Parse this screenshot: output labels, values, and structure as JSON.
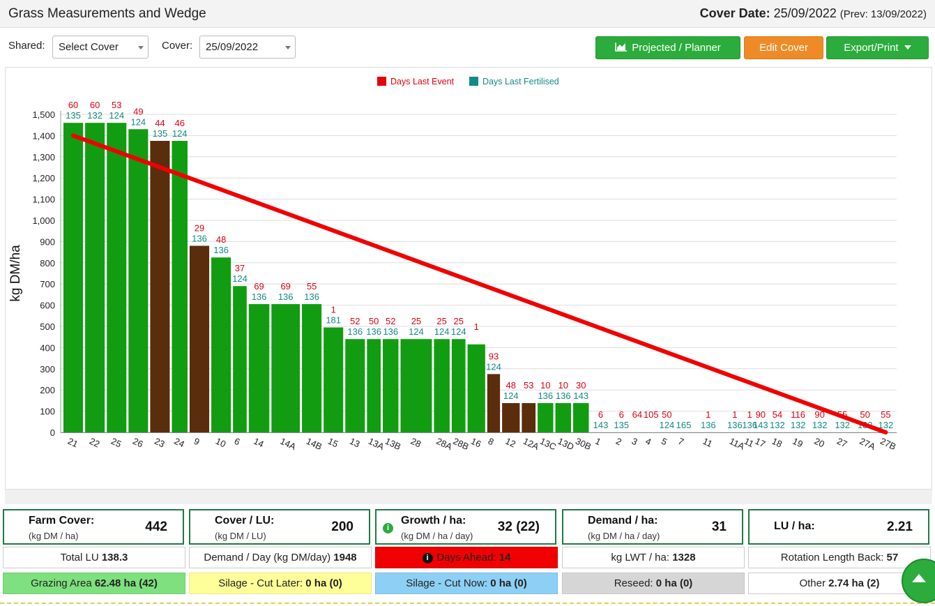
{
  "header": {
    "title": "Grass Measurements and Wedge",
    "cover_date_label": "Cover Date:",
    "cover_date": "25/09/2022",
    "prev": "(Prev: 13/09/2022)"
  },
  "toolbar": {
    "shared_label": "Shared:",
    "shared_value": "Select Cover",
    "cover_label": "Cover:",
    "cover_value": "25/09/2022",
    "projected_label": "Projected / Planner",
    "edit_label": "Edit Cover",
    "export_label": "Export/Print"
  },
  "chart_data": {
    "type": "bar",
    "ylabel": "kg DM/ha",
    "ylim": [
      0,
      1500
    ],
    "yticks": [
      0,
      100,
      200,
      300,
      400,
      500,
      600,
      700,
      800,
      900,
      1000,
      1100,
      1200,
      1300,
      1400,
      1500
    ],
    "legend": [
      {
        "name": "Days Last Event",
        "color": "#e3000f"
      },
      {
        "name": "Days Last Fertilised",
        "color": "#128a86"
      }
    ],
    "bars": [
      {
        "cat": "21",
        "value": 1460,
        "area": 1,
        "color": "#129c12",
        "event": "60",
        "fert": "135"
      },
      {
        "cat": "22",
        "value": 1460,
        "area": 1,
        "color": "#129c12",
        "event": "60",
        "fert": "132"
      },
      {
        "cat": "25",
        "value": 1460,
        "area": 1,
        "color": "#129c12",
        "event": "53",
        "fert": "124"
      },
      {
        "cat": "26",
        "value": 1430,
        "area": 1,
        "color": "#129c12",
        "event": "49",
        "fert": "124"
      },
      {
        "cat": "23",
        "value": 1375,
        "area": 1,
        "color": "#5a2d0c",
        "event": "44",
        "fert": "135"
      },
      {
        "cat": "24",
        "value": 1375,
        "area": 0.8,
        "color": "#129c12",
        "event": "46",
        "fert": "124"
      },
      {
        "cat": "9",
        "value": 880,
        "area": 1,
        "color": "#5a2d0c",
        "event": "29",
        "fert": "136"
      },
      {
        "cat": "10",
        "value": 825,
        "area": 1,
        "color": "#129c12",
        "event": "48",
        "fert": "136"
      },
      {
        "cat": "6",
        "value": 690,
        "area": 0.7,
        "color": "#129c12",
        "event": "37",
        "fert": "124"
      },
      {
        "cat": "14",
        "value": 605,
        "area": 1.05,
        "color": "#129c12",
        "event": "69",
        "fert": "136"
      },
      {
        "cat": "14A",
        "value": 605,
        "area": 1.45,
        "color": "#129c12",
        "event": "69",
        "fert": "136"
      },
      {
        "cat": "14B",
        "value": 605,
        "area": 1,
        "color": "#129c12",
        "event": "55",
        "fert": "136"
      },
      {
        "cat": "15",
        "value": 495,
        "area": 1,
        "color": "#129c12",
        "event": "1",
        "fert": "181"
      },
      {
        "cat": "13",
        "value": 440,
        "area": 1,
        "color": "#129c12",
        "event": "52",
        "fert": "136"
      },
      {
        "cat": "13A",
        "value": 440,
        "area": 0.7,
        "color": "#129c12",
        "event": "50",
        "fert": "136"
      },
      {
        "cat": "13B",
        "value": 440,
        "area": 0.8,
        "color": "#129c12",
        "event": "52",
        "fert": "136"
      },
      {
        "cat": "28",
        "value": 440,
        "area": 1.6,
        "color": "#129c12",
        "event": "25",
        "fert": "124"
      },
      {
        "cat": "28A",
        "value": 440,
        "area": 0.8,
        "color": "#129c12",
        "event": "25",
        "fert": "124"
      },
      {
        "cat": "28B",
        "value": 440,
        "area": 0.7,
        "color": "#129c12",
        "event": "25",
        "fert": "124"
      },
      {
        "cat": "16",
        "value": 415,
        "area": 0.9,
        "color": "#129c12",
        "event": "1",
        "fert": ""
      },
      {
        "cat": "8",
        "value": 275,
        "area": 0.65,
        "color": "#5a2d0c",
        "event": "93",
        "fert": "124"
      },
      {
        "cat": "12",
        "value": 138,
        "area": 0.9,
        "color": "#5a2d0c",
        "event": "48",
        "fert": "124"
      },
      {
        "cat": "12A",
        "value": 138,
        "area": 0.7,
        "color": "#5a2d0c",
        "event": "53",
        "fert": ""
      },
      {
        "cat": "13C",
        "value": 138,
        "area": 0.8,
        "color": "#129c12",
        "event": "10",
        "fert": "136"
      },
      {
        "cat": "13D",
        "value": 138,
        "area": 0.8,
        "color": "#129c12",
        "event": "10",
        "fert": "136"
      },
      {
        "cat": "30B",
        "value": 138,
        "area": 0.8,
        "color": "#129c12",
        "event": "30",
        "fert": "143"
      },
      {
        "cat": "1",
        "value": 0,
        "area": 1,
        "color": "#129c12",
        "event": "6",
        "fert": "143"
      },
      {
        "cat": "2",
        "value": 0,
        "area": 0.9,
        "color": "#129c12",
        "event": "6",
        "fert": "135"
      },
      {
        "cat": "3",
        "value": 0,
        "area": 0.5,
        "color": "#129c12",
        "event": "64",
        "fert": ""
      },
      {
        "cat": "4",
        "value": 0,
        "area": 0.7,
        "color": "#129c12",
        "event": "105",
        "fert": ""
      },
      {
        "cat": "5",
        "value": 0,
        "area": 0.7,
        "color": "#129c12",
        "event": "50",
        "fert": "124"
      },
      {
        "cat": "7",
        "value": 0,
        "area": 0.8,
        "color": "#129c12",
        "event": "",
        "fert": "165"
      },
      {
        "cat": "11",
        "value": 0,
        "area": 1.5,
        "color": "#129c12",
        "event": "1",
        "fert": "136"
      },
      {
        "cat": "11A",
        "value": 0,
        "area": 1,
        "color": "#129c12",
        "event": "1",
        "fert": "136"
      },
      {
        "cat": "11",
        "value": 0,
        "area": 0.3,
        "color": "#129c12",
        "event": "1",
        "fert": "136"
      },
      {
        "cat": "17",
        "value": 0,
        "area": 0.6,
        "color": "#129c12",
        "event": "90",
        "fert": "143"
      },
      {
        "cat": "18",
        "value": 0,
        "area": 0.9,
        "color": "#129c12",
        "event": "54",
        "fert": "132"
      },
      {
        "cat": "19",
        "value": 0,
        "area": 1,
        "color": "#129c12",
        "event": "116",
        "fert": "132"
      },
      {
        "cat": "20",
        "value": 0,
        "area": 1,
        "color": "#129c12",
        "event": "90",
        "fert": "132"
      },
      {
        "cat": "27",
        "value": 0,
        "area": 1.1,
        "color": "#129c12",
        "event": "55",
        "fert": "132"
      },
      {
        "cat": "27A",
        "value": 0,
        "area": 1,
        "color": "#129c12",
        "event": "50",
        "fert": "132"
      },
      {
        "cat": "27B",
        "value": 0,
        "area": 0.9,
        "color": "#129c12",
        "event": "55",
        "fert": "132"
      }
    ],
    "wedge": {
      "from": 1400,
      "to": 0,
      "color": "#f00000"
    }
  },
  "stats": {
    "farm_cover": {
      "title": "Farm Cover:",
      "unit": "(kg DM / ha)",
      "value": "442"
    },
    "cover_lu": {
      "title": "Cover / LU:",
      "unit": "(kg DM / LU)",
      "value": "200"
    },
    "growth": {
      "title": "Growth / ha:",
      "unit": "(kg DM / ha / day)",
      "value": "32 (22)"
    },
    "demand": {
      "title": "Demand / ha:",
      "unit": "(kg DM / ha / day)",
      "value": "31"
    },
    "lu_ha": {
      "title": "LU / ha:",
      "value": "2.21"
    }
  },
  "row2": {
    "total_lu_label": "Total LU",
    "total_lu": "138.3",
    "demand_day_label": "Demand / Day (kg DM/day)",
    "demand_day": "1948",
    "days_ahead_label": "Days Ahead:",
    "days_ahead": "14",
    "kg_lwt_label": "kg LWT / ha:",
    "kg_lwt": "1328",
    "rotation_label": "Rotation Length Back:",
    "rotation": "57"
  },
  "row3": {
    "grazing_label": "Grazing Area",
    "grazing": "62.48 ha (42)",
    "silage_later_label": "Silage - Cut Later:",
    "silage_later": "0 ha (0)",
    "silage_now_label": "Silage - Cut Now:",
    "silage_now": "0 ha (0)",
    "reseed_label": "Reseed:",
    "reseed": "0 ha (0)",
    "other_label": "Other",
    "other": "2.74 ha (2)"
  },
  "colors": {
    "accent_green": "#2bac3c",
    "accent_orange": "#ef8b26",
    "days_ahead_bg": "#f00000",
    "grazing_bg": "#7ee07e",
    "silage_later_bg": "#ffff99",
    "silage_now_bg": "#8ecff5",
    "reseed_bg": "#d6d6d6"
  }
}
